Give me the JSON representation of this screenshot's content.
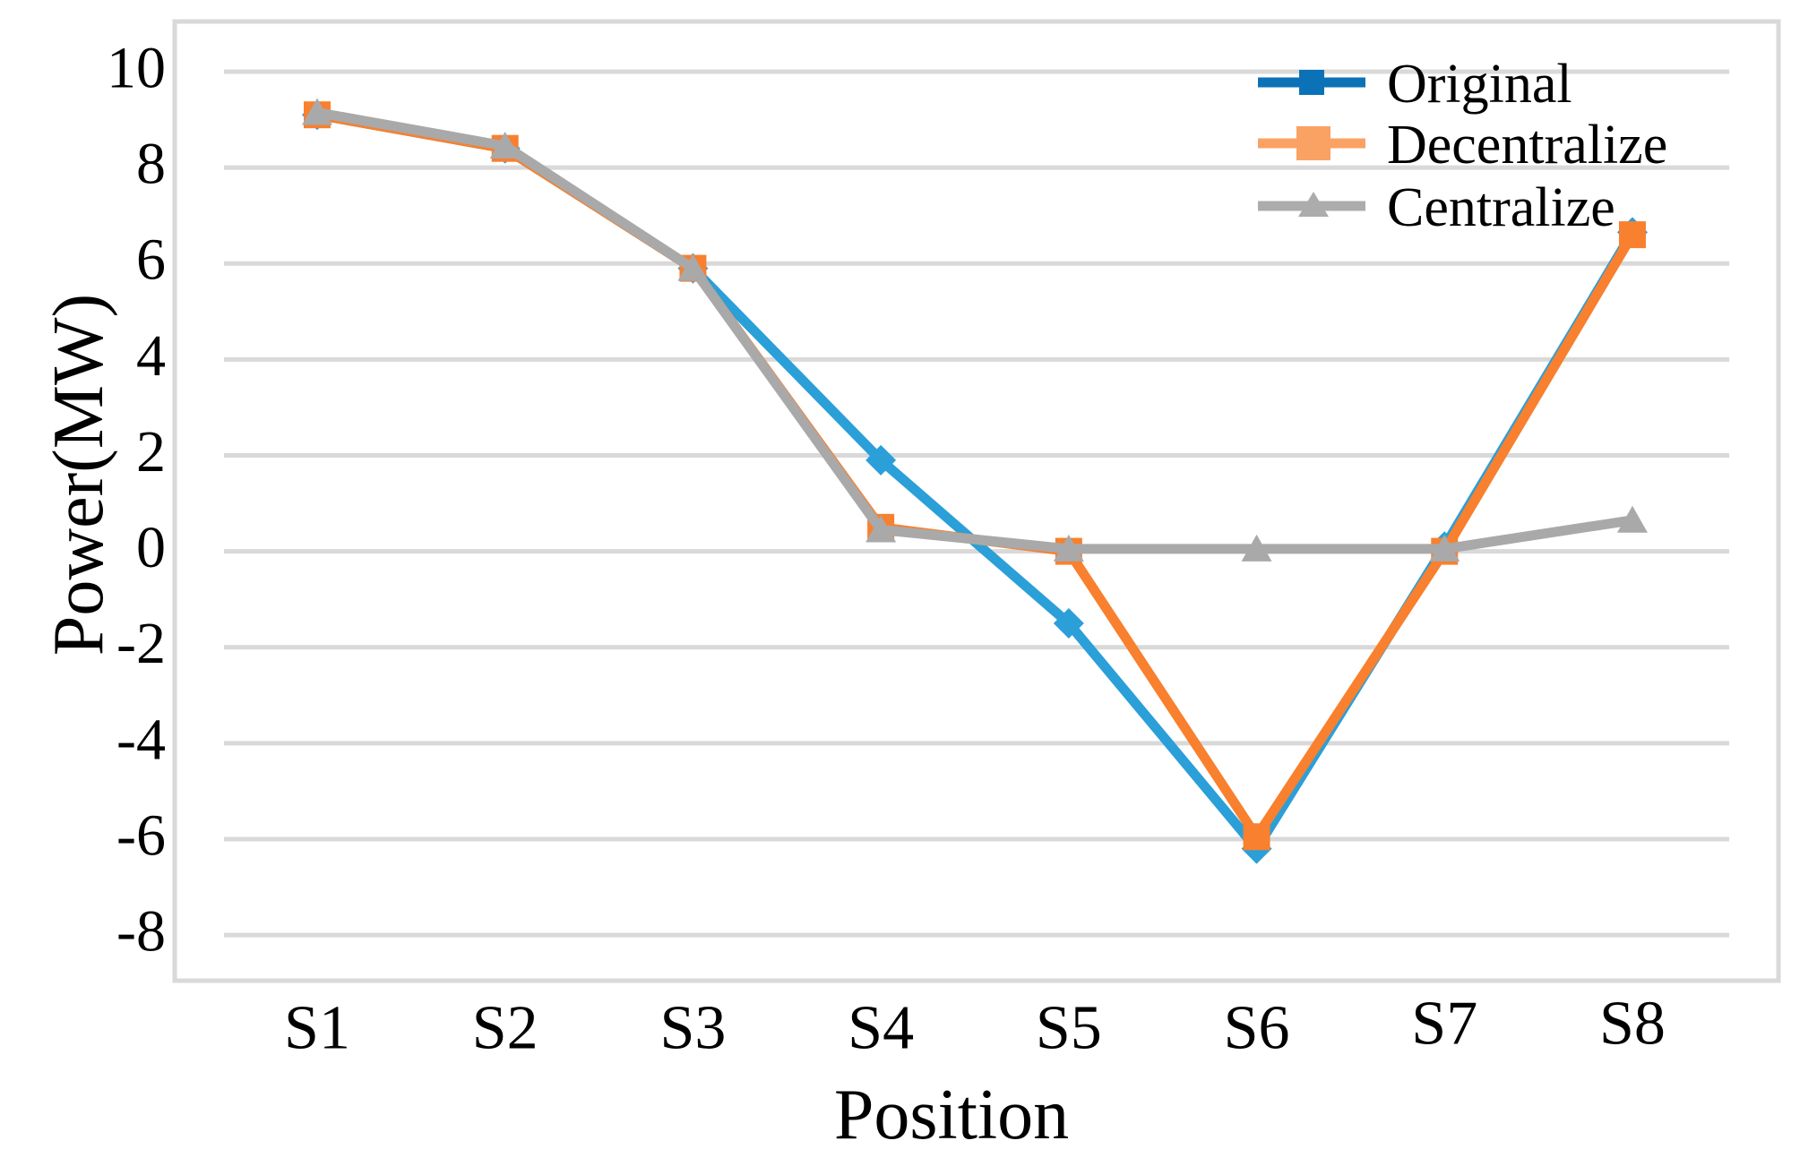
{
  "figure": {
    "background": "#ffffff"
  },
  "chart_data": {
    "type": "line",
    "title": "",
    "xlabel": "Position",
    "ylabel": "Power(MW)",
    "categories": [
      "S1",
      "S2",
      "S3",
      "S4",
      "S5",
      "S6",
      "S7",
      "S8"
    ],
    "yticks": [
      10,
      8,
      6,
      4,
      2,
      0,
      -2,
      -4,
      -6,
      -8
    ],
    "ylim": [
      -9,
      10.6
    ],
    "grid": true,
    "legend_position": "top-right-inside",
    "colors": {
      "gridline": "#d9d9d9",
      "axis_box": "#d9d9d9",
      "text": "#000000"
    },
    "series": [
      {
        "name": "Original",
        "color": "#2b9fd8",
        "legend_color": "#0b72b7",
        "marker": "diamond",
        "legend_marker": "square",
        "values": [
          9.1,
          8.4,
          5.9,
          1.9,
          -1.5,
          -6.2,
          0.1,
          6.65
        ]
      },
      {
        "name": "Decentralize",
        "color": "#f8802e",
        "legend_color": "#faa263",
        "marker": "square",
        "legend_marker": "square",
        "values": [
          9.1,
          8.4,
          5.9,
          0.5,
          0.0,
          -5.95,
          0.0,
          6.6
        ]
      },
      {
        "name": "Centralize",
        "color": "#a9a9a9",
        "legend_color": "#acacac",
        "marker": "triangle",
        "legend_marker": "triangle",
        "values": [
          9.15,
          8.45,
          5.9,
          0.45,
          0.05,
          0.05,
          0.05,
          0.65
        ]
      }
    ]
  }
}
